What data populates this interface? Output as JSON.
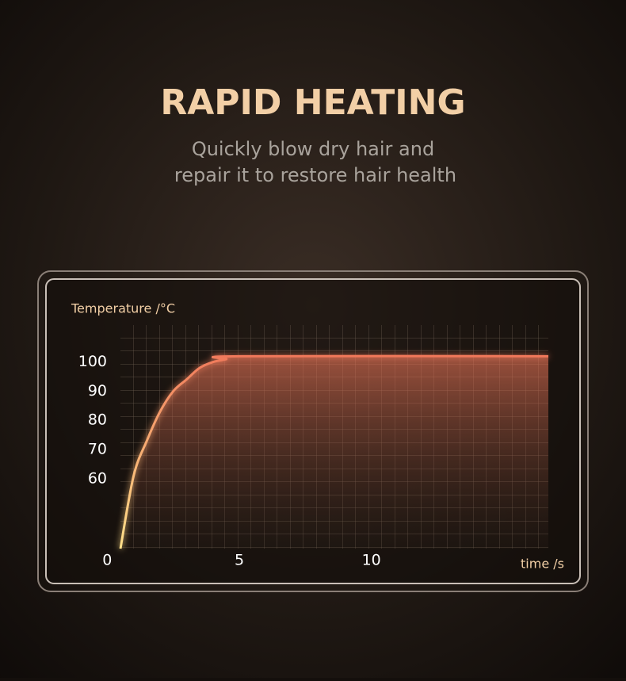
{
  "header": {
    "title": "RAPID HEATING",
    "subtitle": [
      "Quickly blow dry hair and",
      "repair it to restore hair health"
    ]
  },
  "chart_data": {
    "type": "area",
    "y_label": "Temperature /°C",
    "x_label": "time /s",
    "x": [
      0.5,
      1,
      1.5,
      2,
      2.5,
      3,
      3.5,
      4,
      4.5,
      5,
      16.7
    ],
    "series": [
      {
        "color": "#f0785a",
        "values": [
          36,
          61,
          73,
          83,
          90,
          94,
          98,
          100,
          101,
          102,
          102
        ]
      }
    ],
    "xlim": [
      0.5,
      16.7
    ],
    "xticks": [
      0,
      5,
      10
    ],
    "ylim": [
      36,
      112.7
    ],
    "yticks": [
      60,
      70,
      80,
      90,
      100
    ],
    "grid": true
  }
}
